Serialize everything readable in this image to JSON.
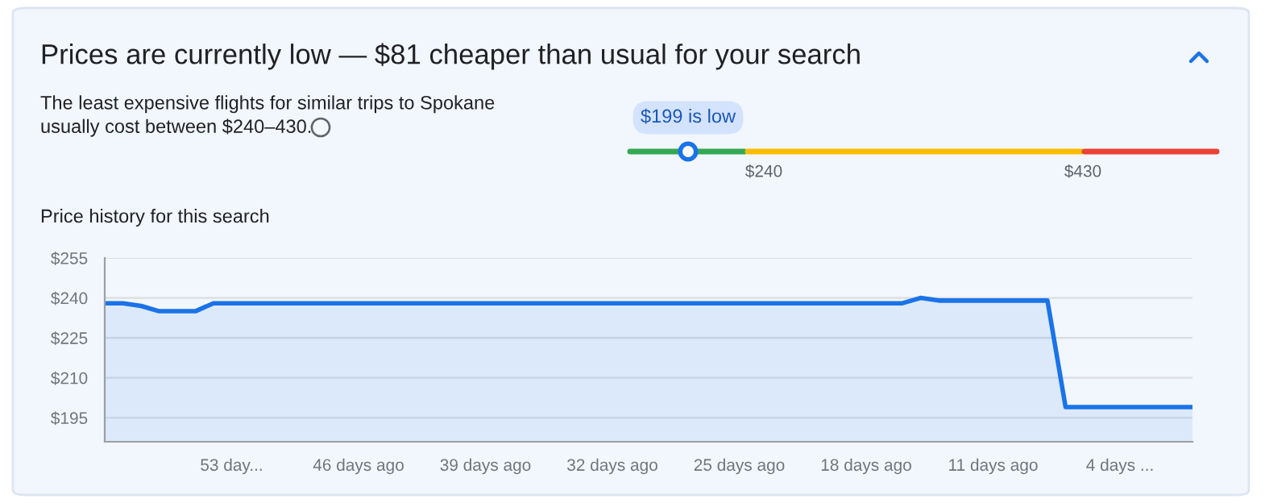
{
  "chart_data": [
    {
      "type": "other",
      "title": "Prices are currently low — $81 cheaper than usual for your search",
      "subtitle": "The least expensive flights for similar trips to Spokane\nusually cost between $240–430.",
      "annotations": [
        "$199 is low",
        "$240",
        "$430"
      ]
    },
    {
      "type": "area",
      "title": "Price history for this search",
      "x": [
        -60,
        -59,
        -58,
        -57,
        -55,
        -54,
        -16,
        -15,
        -14,
        -8,
        -7,
        0
      ],
      "series": [
        {
          "color": "#1a73e8",
          "values": [
            238,
            238,
            237,
            235,
            235,
            238,
            238,
            240,
            239,
            239,
            199,
            199
          ]
        }
      ],
      "xlim": [
        -60,
        0
      ],
      "xticks": [
        {
          "value": -53,
          "label": "53 day..."
        },
        {
          "value": -46,
          "label": "46 days ago"
        },
        {
          "value": -39,
          "label": "39 days ago"
        },
        {
          "value": -32,
          "label": "32 days ago"
        },
        {
          "value": -25,
          "label": "25 days ago"
        },
        {
          "value": -18,
          "label": "18 days ago"
        },
        {
          "value": -11,
          "label": "11 days ago"
        },
        {
          "value": -4,
          "label": "4 days ..."
        }
      ],
      "ylim": [
        186,
        255
      ],
      "yticks": [
        {
          "value": 195,
          "label": "$195"
        },
        {
          "value": 210,
          "label": "$210"
        },
        {
          "value": 225,
          "label": "$225"
        },
        {
          "value": 240,
          "label": "$240"
        },
        {
          "value": 255,
          "label": "$255"
        }
      ],
      "grid": "y"
    }
  ]
}
